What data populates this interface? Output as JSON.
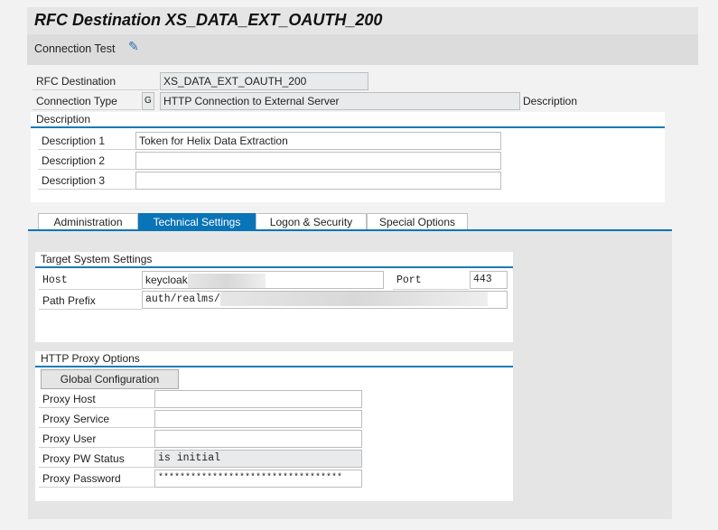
{
  "title": "RFC Destination XS_DATA_EXT_OAUTH_200",
  "toolbar": {
    "connection_test": "Connection Test",
    "icon": "display-change-icon"
  },
  "header": {
    "rfc_destination_label": "RFC Destination",
    "rfc_destination_value": "XS_DATA_EXT_OAUTH_200",
    "connection_type_label": "Connection Type",
    "connection_type_code": "G",
    "connection_type_value": "HTTP Connection to External Server",
    "description_label": "Description"
  },
  "description": {
    "title": "Description",
    "rows": [
      {
        "label": "Description 1",
        "value": "Token for Helix Data Extraction"
      },
      {
        "label": "Description 2",
        "value": ""
      },
      {
        "label": "Description 3",
        "value": ""
      }
    ]
  },
  "tabs": [
    {
      "label": "Administration"
    },
    {
      "label": "Technical Settings",
      "active": true
    },
    {
      "label": "Logon & Security"
    },
    {
      "label": "Special Options"
    }
  ],
  "target": {
    "title": "Target System Settings",
    "host_label": "Host",
    "host_value": "keycloak",
    "port_label": "Port",
    "port_value": "443",
    "path_label": "Path Prefix",
    "path_value": "auth/realms/"
  },
  "proxy": {
    "title": "HTTP Proxy Options",
    "global_button": "Global Configuration",
    "rows": [
      {
        "label": "Proxy Host",
        "value": ""
      },
      {
        "label": "Proxy Service",
        "value": ""
      },
      {
        "label": "Proxy User",
        "value": ""
      },
      {
        "label": "Proxy PW Status",
        "value": "is initial"
      },
      {
        "label": "Proxy Password",
        "value": "**********************************"
      }
    ]
  },
  "colors": {
    "accent": "#0a74b8"
  }
}
